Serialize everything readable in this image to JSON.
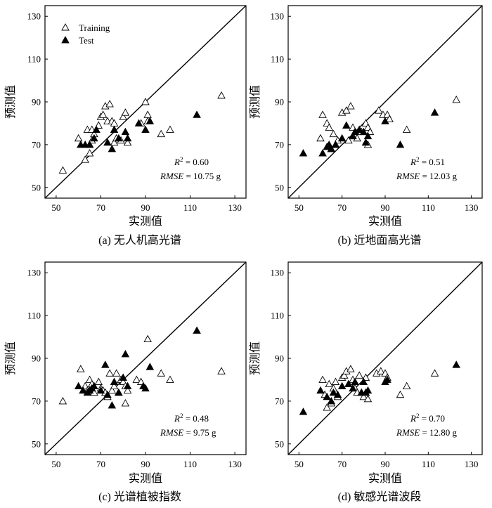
{
  "figure": {
    "panels": [
      {
        "id": "a",
        "caption": "(a) 无人机高光谱",
        "x_label": "实测值",
        "y_label": "预测值",
        "legend": {
          "visible": true,
          "placement": "top-left",
          "training": "Training",
          "test": "Test"
        },
        "r2_value": "0.60",
        "rmse_value": "10.75 g"
      },
      {
        "id": "b",
        "caption": "(b) 近地面高光谱",
        "x_label": "实测值",
        "y_label": "预测值",
        "legend": {
          "visible": false
        },
        "r2_value": "0.51",
        "rmse_value": "12.03 g"
      },
      {
        "id": "c",
        "caption": "(c) 光谱植被指数",
        "x_label": "实测值",
        "y_label": "预测值",
        "legend": {
          "visible": false
        },
        "r2_value": "0.48",
        "rmse_value": "9.75 g"
      },
      {
        "id": "d",
        "caption": "(d) 敏感光谱波段",
        "x_label": "实测值",
        "y_label": "预测值",
        "legend": {
          "visible": false
        },
        "r2_value": "0.70",
        "rmse_value": "12.80 g"
      }
    ],
    "stat_labels": {
      "r2_symbol": "R",
      "r2_sup": "2",
      "rmse_symbol": "RMSE"
    }
  },
  "chart_data": [
    {
      "type": "scatter",
      "panel": "a",
      "xlim": [
        45,
        135
      ],
      "ylim": [
        45,
        135
      ],
      "x_ticks": [
        50,
        70,
        90,
        110,
        130
      ],
      "y_ticks": [
        50,
        70,
        90,
        110,
        130
      ],
      "reference_line": "1:1",
      "grid": false,
      "series": [
        {
          "name": "Training",
          "marker": "open-triangle",
          "points": [
            [
              53,
              58
            ],
            [
              60,
              73
            ],
            [
              63,
              63
            ],
            [
              64,
              77
            ],
            [
              65,
              66
            ],
            [
              65,
              70
            ],
            [
              66,
              72
            ],
            [
              66,
              77
            ],
            [
              67,
              75
            ],
            [
              69,
              79
            ],
            [
              70,
              83
            ],
            [
              71,
              84
            ],
            [
              72,
              88
            ],
            [
              73,
              81
            ],
            [
              74,
              89
            ],
            [
              75,
              81
            ],
            [
              76,
              80
            ],
            [
              76,
              71
            ],
            [
              77,
              73
            ],
            [
              79,
              72
            ],
            [
              80,
              83
            ],
            [
              81,
              85
            ],
            [
              82,
              71
            ],
            [
              88,
              80
            ],
            [
              90,
              90
            ],
            [
              91,
              84
            ],
            [
              91,
              81
            ],
            [
              97,
              75
            ],
            [
              101,
              77
            ],
            [
              124,
              93
            ]
          ]
        },
        {
          "name": "Test",
          "marker": "filled-triangle",
          "points": [
            [
              61,
              70
            ],
            [
              63,
              70
            ],
            [
              65,
              70
            ],
            [
              67,
              73
            ],
            [
              68,
              77
            ],
            [
              73,
              71
            ],
            [
              75,
              68
            ],
            [
              76,
              77
            ],
            [
              78,
              73
            ],
            [
              81,
              76
            ],
            [
              82,
              73
            ],
            [
              87,
              80
            ],
            [
              90,
              77
            ],
            [
              92,
              81
            ],
            [
              113,
              84
            ]
          ]
        }
      ]
    },
    {
      "type": "scatter",
      "panel": "b",
      "xlim": [
        45,
        135
      ],
      "ylim": [
        45,
        135
      ],
      "x_ticks": [
        50,
        70,
        90,
        110,
        130
      ],
      "y_ticks": [
        50,
        70,
        90,
        110,
        130
      ],
      "reference_line": "1:1",
      "grid": false,
      "series": [
        {
          "name": "Training",
          "marker": "open-triangle",
          "points": [
            [
              60,
              73
            ],
            [
              61,
              84
            ],
            [
              63,
              80
            ],
            [
              64,
              78
            ],
            [
              65,
              68
            ],
            [
              66,
              75
            ],
            [
              67,
              70
            ],
            [
              68,
              72
            ],
            [
              70,
              85
            ],
            [
              72,
              86
            ],
            [
              73,
              72
            ],
            [
              74,
              88
            ],
            [
              75,
              78
            ],
            [
              76,
              74
            ],
            [
              77,
              73
            ],
            [
              79,
              76
            ],
            [
              81,
              80
            ],
            [
              82,
              78
            ],
            [
              82,
              70
            ],
            [
              83,
              76
            ],
            [
              87,
              86
            ],
            [
              89,
              84
            ],
            [
              91,
              84
            ],
            [
              92,
              82
            ],
            [
              100,
              77
            ],
            [
              123,
              91
            ]
          ]
        },
        {
          "name": "Test",
          "marker": "filled-triangle",
          "points": [
            [
              52,
              66
            ],
            [
              61,
              66
            ],
            [
              63,
              69
            ],
            [
              64,
              70
            ],
            [
              65,
              68
            ],
            [
              67,
              70
            ],
            [
              70,
              73
            ],
            [
              72,
              79
            ],
            [
              75,
              74
            ],
            [
              76,
              76
            ],
            [
              78,
              77
            ],
            [
              80,
              76
            ],
            [
              81,
              71
            ],
            [
              82,
              74
            ],
            [
              90,
              81
            ],
            [
              97,
              70
            ],
            [
              113,
              85
            ]
          ]
        }
      ]
    },
    {
      "type": "scatter",
      "panel": "c",
      "xlim": [
        45,
        135
      ],
      "ylim": [
        45,
        135
      ],
      "x_ticks": [
        50,
        70,
        90,
        110,
        130
      ],
      "y_ticks": [
        50,
        70,
        90,
        110,
        130
      ],
      "reference_line": "1:1",
      "grid": false,
      "series": [
        {
          "name": "Training",
          "marker": "open-triangle",
          "points": [
            [
              53,
              70
            ],
            [
              61,
              85
            ],
            [
              63,
              77
            ],
            [
              64,
              75
            ],
            [
              65,
              80
            ],
            [
              66,
              78
            ],
            [
              67,
              74
            ],
            [
              69,
              79
            ],
            [
              70,
              76
            ],
            [
              71,
              75
            ],
            [
              72,
              74
            ],
            [
              73,
              72
            ],
            [
              74,
              83
            ],
            [
              75,
              75
            ],
            [
              76,
              77
            ],
            [
              77,
              83
            ],
            [
              78,
              74
            ],
            [
              79,
              80
            ],
            [
              80,
              79
            ],
            [
              81,
              69
            ],
            [
              81,
              77
            ],
            [
              82,
              75
            ],
            [
              86,
              80
            ],
            [
              88,
              79
            ],
            [
              91,
              99
            ],
            [
              97,
              83
            ],
            [
              101,
              80
            ],
            [
              124,
              84
            ]
          ]
        },
        {
          "name": "Test",
          "marker": "filled-triangle",
          "points": [
            [
              60,
              77
            ],
            [
              62,
              75
            ],
            [
              64,
              74
            ],
            [
              65,
              75
            ],
            [
              66,
              76
            ],
            [
              67,
              77
            ],
            [
              70,
              75
            ],
            [
              72,
              87
            ],
            [
              73,
              73
            ],
            [
              75,
              68
            ],
            [
              76,
              79
            ],
            [
              78,
              74
            ],
            [
              80,
              81
            ],
            [
              81,
              92
            ],
            [
              82,
              77
            ],
            [
              89,
              77
            ],
            [
              90,
              76
            ],
            [
              92,
              86
            ],
            [
              113,
              103
            ]
          ]
        }
      ]
    },
    {
      "type": "scatter",
      "panel": "d",
      "xlim": [
        45,
        135
      ],
      "ylim": [
        45,
        135
      ],
      "x_ticks": [
        50,
        70,
        90,
        110,
        130
      ],
      "y_ticks": [
        50,
        70,
        90,
        110,
        130
      ],
      "reference_line": "1:1",
      "grid": false,
      "series": [
        {
          "name": "Training",
          "marker": "open-triangle",
          "points": [
            [
              61,
              80
            ],
            [
              62,
              73
            ],
            [
              63,
              67
            ],
            [
              64,
              78
            ],
            [
              65,
              69
            ],
            [
              66,
              76
            ],
            [
              67,
              79
            ],
            [
              68,
              72
            ],
            [
              70,
              81
            ],
            [
              71,
              82
            ],
            [
              72,
              84
            ],
            [
              73,
              78
            ],
            [
              74,
              85
            ],
            [
              75,
              80
            ],
            [
              76,
              76
            ],
            [
              77,
              74
            ],
            [
              78,
              82
            ],
            [
              79,
              74
            ],
            [
              80,
              72
            ],
            [
              81,
              81
            ],
            [
              82,
              71
            ],
            [
              86,
              83
            ],
            [
              88,
              84
            ],
            [
              90,
              83
            ],
            [
              91,
              81
            ],
            [
              97,
              73
            ],
            [
              100,
              77
            ],
            [
              113,
              83
            ]
          ]
        },
        {
          "name": "Test",
          "marker": "filled-triangle",
          "points": [
            [
              52,
              65
            ],
            [
              60,
              75
            ],
            [
              63,
              72
            ],
            [
              65,
              70
            ],
            [
              66,
              74
            ],
            [
              68,
              73
            ],
            [
              70,
              77
            ],
            [
              73,
              78
            ],
            [
              75,
              76
            ],
            [
              76,
              79
            ],
            [
              79,
              74
            ],
            [
              80,
              79
            ],
            [
              81,
              74
            ],
            [
              82,
              75
            ],
            [
              90,
              79
            ],
            [
              91,
              80
            ],
            [
              123,
              87
            ]
          ]
        }
      ]
    }
  ]
}
